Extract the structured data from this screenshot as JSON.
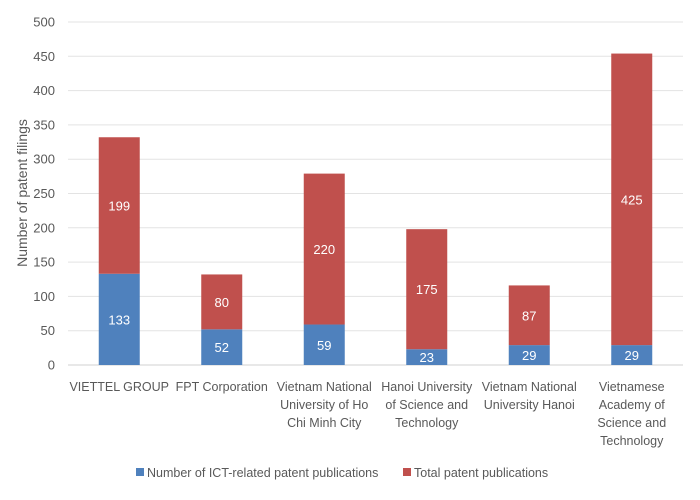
{
  "chart_data": {
    "type": "bar",
    "stacked": true,
    "title": "",
    "xlabel": "",
    "ylabel": "Number of patent filings",
    "ylim": [
      0,
      500
    ],
    "yticks": [
      0,
      50,
      100,
      150,
      200,
      250,
      300,
      350,
      400,
      450,
      500
    ],
    "grid": true,
    "legend_position": "bottom",
    "categories": [
      [
        "VIETTEL GROUP"
      ],
      [
        "FPT Corporation"
      ],
      [
        "Vietnam National",
        "University of Ho",
        "Chi Minh City"
      ],
      [
        "Hanoi University",
        "of Science and",
        "Technology"
      ],
      [
        "Vietnam National",
        "University Hanoi"
      ],
      [
        "Vietnamese",
        "Academy of",
        "Science and",
        "Technology"
      ]
    ],
    "series": [
      {
        "name": "Number of ICT-related patent publications",
        "color": "#4F81BD",
        "values": [
          133,
          52,
          59,
          23,
          29,
          29
        ]
      },
      {
        "name": "Total patent publications",
        "color": "#C0504D",
        "values": [
          199,
          80,
          220,
          175,
          87,
          425
        ]
      }
    ]
  }
}
